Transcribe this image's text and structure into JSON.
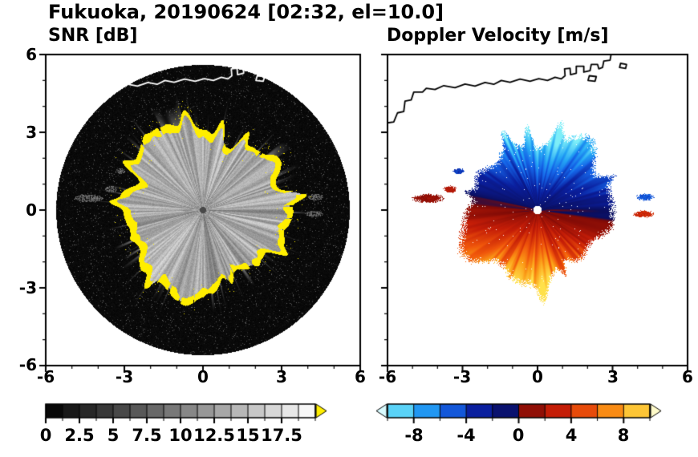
{
  "title": "Fukuoka, 20190624 [02:32, el=10.0]",
  "chart_data": [
    {
      "type": "heatmap",
      "id": "snr",
      "title": "SNR [dB]",
      "xlim": [
        -6,
        6
      ],
      "ylim": [
        -6,
        6
      ],
      "x_ticks": [
        -6,
        -3,
        0,
        3,
        6
      ],
      "y_ticks": [
        -6,
        -3,
        0,
        3,
        6
      ],
      "x_tick_labels": [
        "-6",
        "-3",
        "0",
        "3",
        "6"
      ],
      "y_tick_labels": [
        "6",
        "3",
        "0",
        "-3",
        "-6"
      ],
      "units": "dB",
      "scan_disk": {
        "radius": 5.6,
        "color": "#000000"
      },
      "echo": {
        "mean_radius": 3.0,
        "texture": "grayscale radial streaks",
        "edge_ring_color": "#ffee00",
        "center_dot_color": "#484848"
      },
      "colorbar": {
        "min": 0,
        "max": 20,
        "segments": 16,
        "colormap": "grayscale",
        "tick_values": [
          0,
          2.5,
          5,
          7.5,
          10,
          12.5,
          15,
          17.5
        ],
        "tick_labels": [
          "0",
          "2.5",
          "5",
          "7.5",
          "10",
          "12.5",
          "15",
          "17.5"
        ],
        "over_arrow_color": "#ffee00"
      }
    },
    {
      "type": "heatmap",
      "id": "doppler",
      "title": "Doppler Velocity [m/s]",
      "xlim": [
        -6,
        6
      ],
      "ylim": [
        -6,
        6
      ],
      "x_ticks": [
        -6,
        -3,
        0,
        3,
        6
      ],
      "y_ticks": [
        -6,
        -3,
        0,
        3,
        6
      ],
      "x_tick_labels": [
        "-6",
        "-3",
        "0",
        "3",
        "6"
      ],
      "units": "m/s",
      "field": {
        "mean_radius": 2.75,
        "pattern": "negative (blue) north half, positive (warm) south half",
        "max_abs_velocity": 9.7,
        "center_dot_color": "#ffffff"
      },
      "colorbar": {
        "min": -10,
        "max": 10,
        "segments": 10,
        "tick_values": [
          -8,
          -4,
          0,
          4,
          8
        ],
        "tick_labels": [
          "-8",
          "-4",
          "0",
          "4",
          "8"
        ],
        "stops": [
          {
            "v": -10,
            "c": "#7deef8"
          },
          {
            "v": -7.5,
            "c": "#25a7f5"
          },
          {
            "v": -5.5,
            "c": "#1565e8"
          },
          {
            "v": -3,
            "c": "#0a1f9e"
          },
          {
            "v": -0.3,
            "c": "#0a0e5e"
          },
          {
            "v": 0.3,
            "c": "#7e0a06"
          },
          {
            "v": 3,
            "c": "#c41d07"
          },
          {
            "v": 5.5,
            "c": "#f0560b"
          },
          {
            "v": 7.5,
            "c": "#fb9c17"
          },
          {
            "v": 10,
            "c": "#ffe14a"
          }
        ],
        "under_arrow_color": "#d9fbff",
        "over_arrow_color": "#fffbc9"
      },
      "detached_patches": [
        {
          "x": -4.35,
          "y": 0.45,
          "rx": 0.55,
          "ry": 0.15,
          "v": 1.2
        },
        {
          "x": -3.5,
          "y": 0.8,
          "rx": 0.25,
          "ry": 0.12,
          "v": 2.5
        },
        {
          "x": -3.15,
          "y": 1.5,
          "rx": 0.2,
          "ry": 0.1,
          "v": -4
        },
        {
          "x": 4.3,
          "y": 0.5,
          "rx": 0.3,
          "ry": 0.12,
          "v": -5
        },
        {
          "x": 4.25,
          "y": -0.15,
          "rx": 0.35,
          "ry": 0.12,
          "v": 3.5
        }
      ]
    }
  ],
  "coastline": {
    "color_left_panel": "#ffffff",
    "color_right_panel": "#000000",
    "points": [
      [
        -6.1,
        3.35
      ],
      [
        -5.75,
        3.4
      ],
      [
        -5.6,
        3.75
      ],
      [
        -5.35,
        3.8
      ],
      [
        -5.3,
        4.2
      ],
      [
        -5.05,
        4.25
      ],
      [
        -4.95,
        4.55
      ],
      [
        -4.6,
        4.55
      ],
      [
        -4.45,
        4.7
      ],
      [
        -4.1,
        4.65
      ],
      [
        -3.75,
        4.8
      ],
      [
        -3.3,
        4.72
      ],
      [
        -2.9,
        4.86
      ],
      [
        -2.5,
        4.78
      ],
      [
        -2.1,
        4.92
      ],
      [
        -1.75,
        4.85
      ],
      [
        -1.45,
        5.0
      ],
      [
        -1.1,
        4.93
      ],
      [
        -0.7,
        5.05
      ],
      [
        -0.3,
        4.97
      ],
      [
        0.05,
        5.07
      ],
      [
        0.4,
        5.0
      ],
      [
        0.7,
        5.12
      ],
      [
        0.95,
        5.06
      ],
      [
        1.1,
        5.18
      ],
      [
        1.08,
        5.45
      ],
      [
        1.3,
        5.47
      ],
      [
        1.32,
        5.22
      ],
      [
        1.55,
        5.28
      ],
      [
        1.55,
        5.55
      ],
      [
        1.85,
        5.55
      ],
      [
        1.85,
        5.32
      ],
      [
        2.1,
        5.38
      ],
      [
        2.15,
        5.62
      ],
      [
        2.4,
        5.62
      ],
      [
        2.45,
        5.45
      ],
      [
        2.6,
        5.5
      ],
      [
        2.65,
        5.75
      ],
      [
        2.9,
        5.78
      ],
      [
        2.95,
        6.05
      ]
    ],
    "islands": [
      [
        [
          2.02,
          5.0
        ],
        [
          2.3,
          4.97
        ],
        [
          2.35,
          5.15
        ],
        [
          2.07,
          5.18
        ]
      ],
      [
        [
          3.28,
          5.5
        ],
        [
          3.52,
          5.46
        ],
        [
          3.56,
          5.62
        ],
        [
          3.32,
          5.66
        ]
      ]
    ]
  }
}
